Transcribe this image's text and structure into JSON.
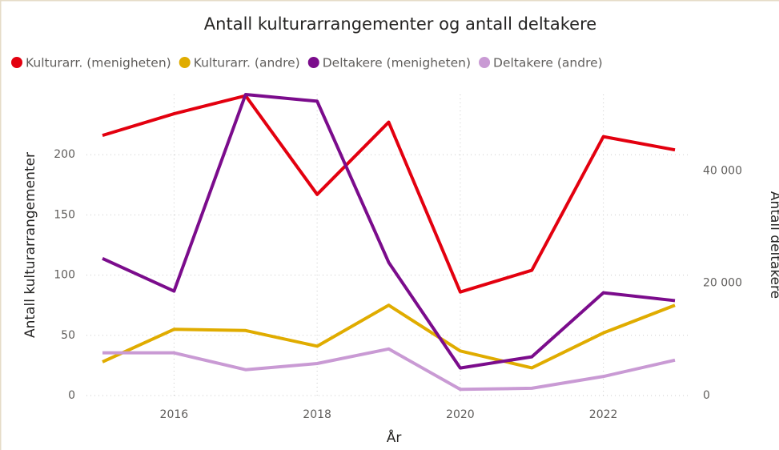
{
  "chart_data": {
    "type": "line",
    "title": "Antall kulturarrangementer og antall deltakere",
    "x_label": "År",
    "y_label": "Antall kulturarrangementer",
    "y2_label": "Antall deltakere",
    "x": [
      2015,
      2016,
      2017,
      2018,
      2019,
      2020,
      2021,
      2022,
      2023
    ],
    "xlim": [
      2015,
      2023
    ],
    "xticks": [
      2016,
      2018,
      2020,
      2022
    ],
    "ylim": [
      0,
      250
    ],
    "yticks": [
      0,
      50,
      100,
      150,
      200
    ],
    "y2lim": [
      0,
      53600
    ],
    "y2ticks": [
      0,
      {
        "value": 20000,
        "label": "20 000"
      },
      {
        "value": 40000,
        "label": "40 000"
      }
    ],
    "grid": true,
    "series": [
      {
        "name": "Kulturarr. (menigheten)",
        "color": "#e3000f",
        "values": [
          216,
          234,
          249,
          167,
          227,
          86,
          104,
          215,
          204
        ]
      },
      {
        "name": "Kulturarr. (andre)",
        "color": "#e0ac00",
        "values": [
          28,
          55,
          54,
          41,
          75,
          37,
          23,
          52,
          75
        ]
      },
      {
        "name": "Deltakere (menigheten)",
        "color": "#7b0c8c",
        "axis": "y2",
        "values": [
          24400,
          18600,
          53600,
          52400,
          23700,
          4900,
          6900,
          18300,
          16900
        ]
      },
      {
        "name": "Deltakere (andre)",
        "color": "#c99ad4",
        "axis": "y2",
        "values": [
          7600,
          7600,
          4600,
          5700,
          8300,
          1100,
          1300,
          3400,
          6300
        ]
      }
    ]
  }
}
